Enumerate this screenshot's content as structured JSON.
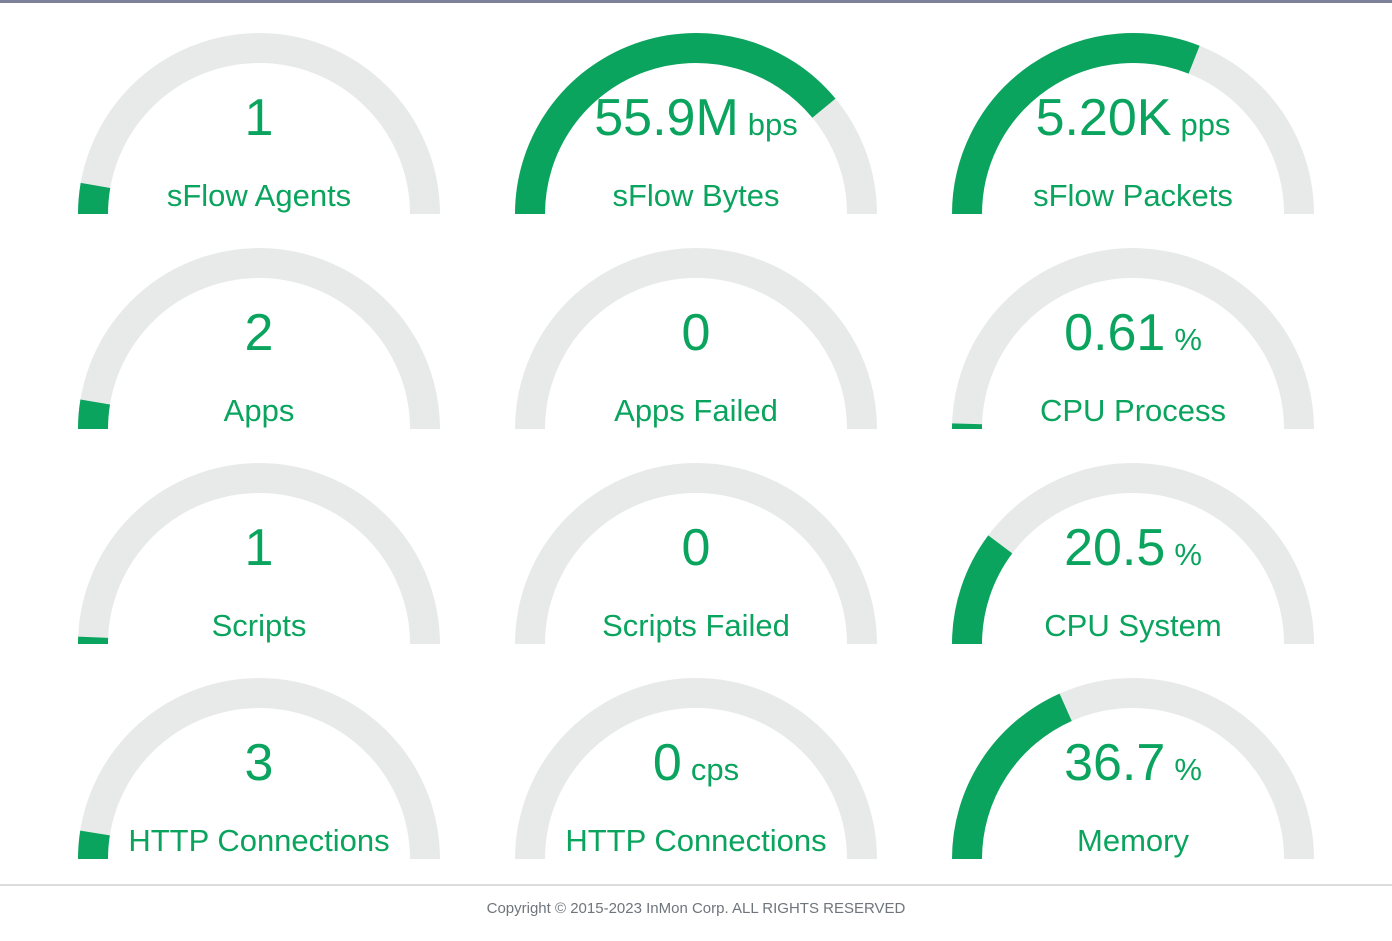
{
  "theme": {
    "accent_green": "#0aa45e",
    "track_gray": "#e8eae9",
    "top_strip_color": "#7d829a",
    "divider_color": "#dcdcdc",
    "footer_text_color": "#6e757c"
  },
  "chart_data": {
    "type": "gauge",
    "layout": "grid-4-rows-3-cols",
    "gauge_range_degrees": 180,
    "gauges": [
      {
        "id": "sflow-agents",
        "display_value": "1",
        "unit": "",
        "label": "sFlow Agents",
        "arc_fill_percent": 5.5
      },
      {
        "id": "sflow-bytes",
        "display_value": "55.9M",
        "unit": "bps",
        "label": "sFlow Bytes",
        "arc_fill_percent": 78
      },
      {
        "id": "sflow-packets",
        "display_value": "5.20K",
        "unit": "pps",
        "label": "sFlow Packets",
        "arc_fill_percent": 62
      },
      {
        "id": "apps",
        "display_value": "2",
        "unit": "",
        "label": "Apps",
        "arc_fill_percent": 5.2
      },
      {
        "id": "apps-failed",
        "display_value": "0",
        "unit": "",
        "label": "Apps Failed",
        "arc_fill_percent": 0
      },
      {
        "id": "cpu-process",
        "display_value": "0.61",
        "unit": "%",
        "label": "CPU Process",
        "arc_fill_percent": 1.0
      },
      {
        "id": "scripts",
        "display_value": "1",
        "unit": "",
        "label": "Scripts",
        "arc_fill_percent": 1.3
      },
      {
        "id": "scripts-failed",
        "display_value": "0",
        "unit": "",
        "label": "Scripts Failed",
        "arc_fill_percent": 0
      },
      {
        "id": "cpu-system",
        "display_value": "20.5",
        "unit": "%",
        "label": "CPU System",
        "arc_fill_percent": 20.5
      },
      {
        "id": "http-connections",
        "display_value": "3",
        "unit": "",
        "label": "HTTP Connections",
        "arc_fill_percent": 5.0
      },
      {
        "id": "http-connections-rate",
        "display_value": "0",
        "unit": "cps",
        "label": "HTTP Connections",
        "arc_fill_percent": 0
      },
      {
        "id": "memory",
        "display_value": "36.7",
        "unit": "%",
        "label": "Memory",
        "arc_fill_percent": 36.7
      }
    ]
  },
  "footer": {
    "copyright": "Copyright © 2015-2023 InMon Corp. ALL RIGHTS RESERVED"
  }
}
